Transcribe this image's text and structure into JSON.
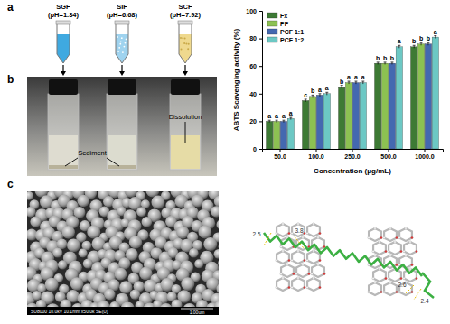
{
  "chart_data": {
    "type": "bar",
    "y_label": "ABTS Scavenging activity (%)",
    "x_label": "Concentration (μg/mL)",
    "categories": [
      "50.0",
      "100.0",
      "250.0",
      "500.0",
      "1000.0"
    ],
    "series": [
      {
        "name": "Fx",
        "color": "#3d7a34",
        "values": [
          20,
          35,
          45,
          62,
          74
        ],
        "errors": [
          0.8,
          1,
          1,
          0.8,
          1
        ],
        "significance": [
          "a",
          "c",
          "b",
          "b",
          "b"
        ]
      },
      {
        "name": "PF",
        "color": "#8cc152",
        "values": [
          20,
          38,
          48,
          62,
          76
        ],
        "errors": [
          0.8,
          1,
          1,
          0.8,
          1
        ],
        "significance": [
          "a",
          "b",
          "a",
          "b",
          "b"
        ]
      },
      {
        "name": "PCF 1:1",
        "color": "#4468b0",
        "values": [
          20,
          39,
          48,
          62,
          76
        ],
        "errors": [
          0.8,
          1,
          1,
          0.8,
          1
        ],
        "significance": [
          "a",
          "a",
          "a",
          "b",
          "b"
        ]
      },
      {
        "name": "PCF 1:2",
        "color": "#6cc8c4",
        "values": [
          22,
          40,
          48,
          74,
          81
        ],
        "errors": [
          0.8,
          1,
          1,
          1,
          1
        ],
        "significance": [
          "a",
          "a",
          "a",
          "a",
          "a"
        ]
      }
    ],
    "ylim": [
      0,
      100
    ],
    "yticks": [
      0,
      20,
      40,
      60,
      80,
      100
    ],
    "legend": "upper-left"
  },
  "figure": {
    "panel_labels": [
      "a",
      "b",
      "c"
    ],
    "tubes": [
      {
        "name": "SGF",
        "ph": "(pH=1.34)"
      },
      {
        "name": "SIF",
        "ph": "(pH=6.68)"
      },
      {
        "name": "SCF",
        "ph": "(pH=7.92)"
      }
    ],
    "photo_labels": {
      "sediment": "Sediment",
      "dissolution": "Dissolution"
    },
    "sem_caption": "SU8000 10.0kV 10.1mm x50.0k SE(U)",
    "sem_scale": "1.00um",
    "docking_distances": [
      2.5,
      3.8,
      2.6,
      2.4
    ]
  }
}
